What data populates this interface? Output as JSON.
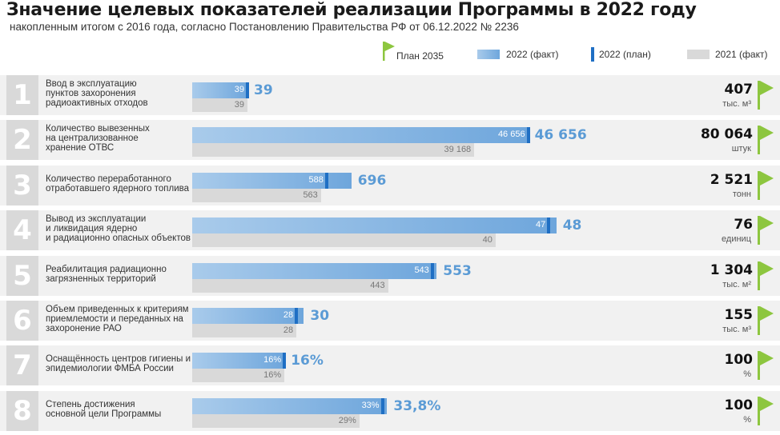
{
  "title": "Значение целевых показателей реализации Программы в 2022 году",
  "subtitle": "накопленным итогом с 2016 года, согласно Постановлению Правительства РФ от 06.12.2022 № 2236",
  "legend": {
    "plan2035": "План 2035",
    "fact2022": "2022 (факт)",
    "plan2022": "2022 (план)",
    "fact2021": "2021 (факт)"
  },
  "colors": {
    "fact2022": "#6ea6dc",
    "plan2022": "#1f6fc4",
    "fact2021": "#d9d9d9",
    "flag": "#8dc63f",
    "numbox": "#d9d9d9"
  },
  "chart_data": {
    "type": "bar",
    "rows": [
      {
        "n": "1",
        "label": [
          "Ввод в эксплуатацию",
          "пунктов захоронения",
          "радиоактивных отходов"
        ],
        "plan2022": 39,
        "plan2022_label": "39",
        "fact2022": 39,
        "fact2022_label": "39",
        "fact2021": 39,
        "fact2021_label": "39",
        "target": 407,
        "target_label": "407",
        "unit": "тыс. м³"
      },
      {
        "n": "2",
        "label": [
          "Количество вывезенных",
          "на централизованное",
          "хранение ОТВС"
        ],
        "plan2022": 46656,
        "plan2022_label": "46 656",
        "fact2022": 46656,
        "fact2022_label": "46 656",
        "fact2021": 39168,
        "fact2021_label": "39 168",
        "target": 80064,
        "target_label": "80 064",
        "unit": "штук"
      },
      {
        "n": "3",
        "label": [
          "Количество переработанного",
          "отработавшего ядерного топлива"
        ],
        "plan2022": 588,
        "plan2022_label": "588",
        "fact2022": 696,
        "fact2022_label": "696",
        "fact2021": 563,
        "fact2021_label": "563",
        "target": 2521,
        "target_label": "2 521",
        "unit": "тонн"
      },
      {
        "n": "4",
        "label": [
          "Вывод из эксплуатации",
          "и ликвидация ядерно",
          "и радиационно опасных объектов"
        ],
        "plan2022": 47,
        "plan2022_label": "47",
        "fact2022": 48,
        "fact2022_label": "48",
        "fact2021": 40,
        "fact2021_label": "40",
        "target": 76,
        "target_label": "76",
        "unit": "единиц"
      },
      {
        "n": "5",
        "label": [
          "Реабилитация радиационно",
          "загрязненных территорий"
        ],
        "plan2022": 543,
        "plan2022_label": "543",
        "fact2022": 553,
        "fact2022_label": "553",
        "fact2021": 443,
        "fact2021_label": "443",
        "target": 1304,
        "target_label": "1 304",
        "unit": "тыс. м²"
      },
      {
        "n": "6",
        "label": [
          "Объем приведенных к критериям",
          "приемлемости и переданных на",
          "захоронение РАО"
        ],
        "plan2022": 28,
        "plan2022_label": "28",
        "fact2022": 30,
        "fact2022_label": "30",
        "fact2021": 28,
        "fact2021_label": "28",
        "target": 155,
        "target_label": "155",
        "unit": "тыс. м³"
      },
      {
        "n": "7",
        "label": [
          "Оснащённость центров гигиены и",
          "эпидемиологии ФМБА России"
        ],
        "plan2022": 16,
        "plan2022_label": "16%",
        "fact2022": 16,
        "fact2022_label": "16%",
        "fact2021": 16,
        "fact2021_label": "16%",
        "target": 100,
        "target_label": "100",
        "unit": "%"
      },
      {
        "n": "8",
        "label": [
          "Степень достижения",
          "основной цели Программы"
        ],
        "plan2022": 33,
        "plan2022_label": "33%",
        "fact2022": 33.8,
        "fact2022_label": "33,8%",
        "fact2021": 29,
        "fact2021_label": "29%",
        "target": 100,
        "target_label": "100",
        "unit": "%"
      }
    ]
  }
}
